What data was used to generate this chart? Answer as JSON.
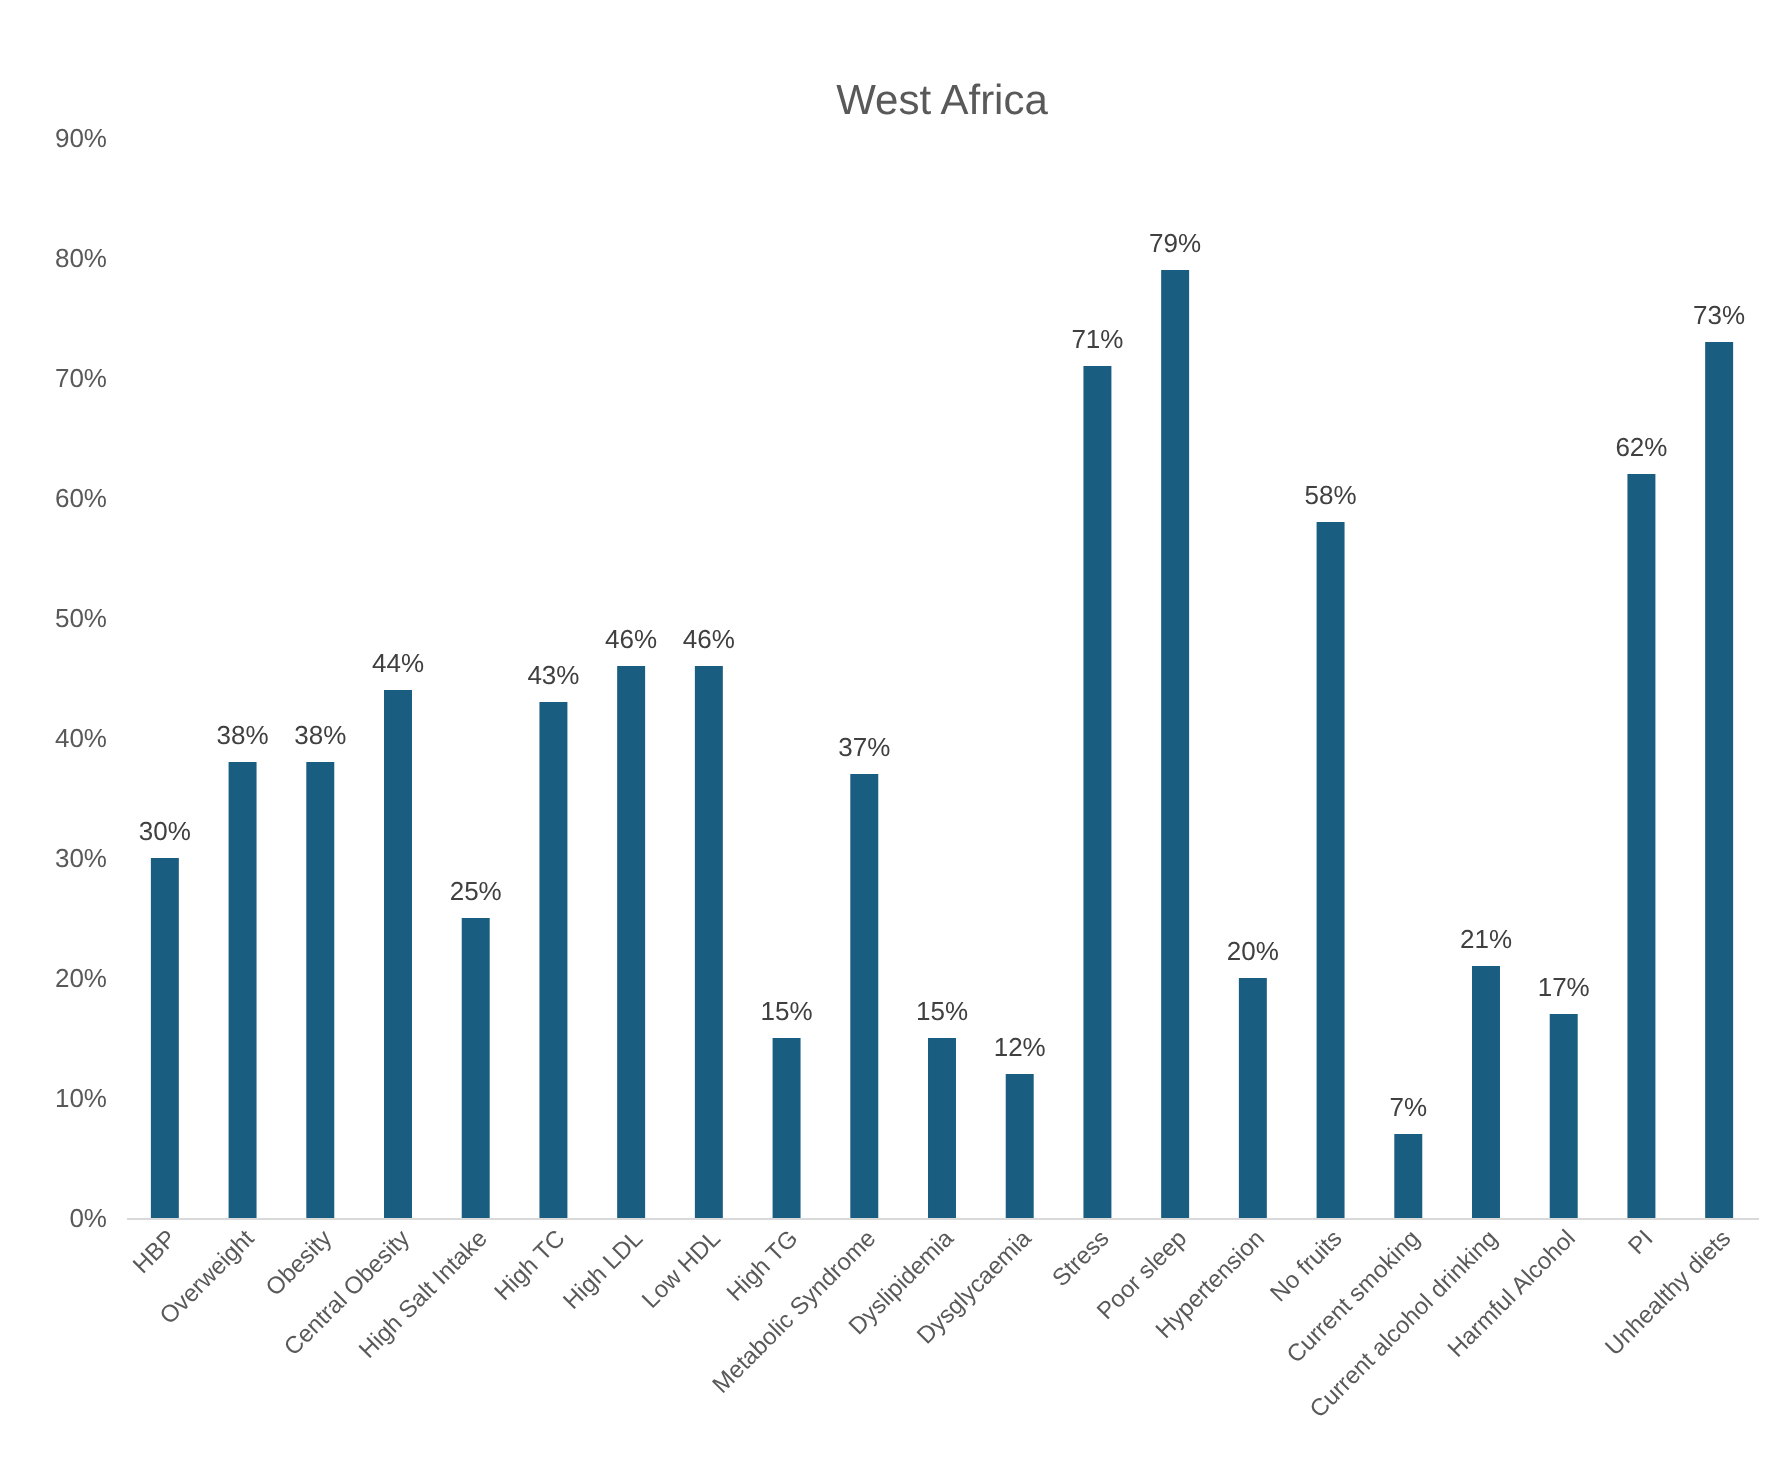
{
  "chart_data": {
    "type": "bar",
    "title": "West Africa",
    "categories": [
      "HBP",
      "Overweight",
      "Obesity",
      "Central Obesity",
      "High Salt Intake",
      "High TC",
      "High LDL",
      "Low HDL",
      "High TG",
      "Metabolic Syndrome",
      "Dyslipidemia",
      "Dysglycaemia",
      "Stress",
      "Poor sleep",
      "Hypertension",
      "No fruits",
      "Current smoking",
      "Current alcohol drinking",
      "Harmful Alcohol",
      "PI",
      "Unhealthy diets"
    ],
    "values": [
      30,
      38,
      38,
      44,
      25,
      43,
      46,
      46,
      15,
      37,
      15,
      12,
      71,
      79,
      20,
      58,
      7,
      21,
      17,
      62,
      73
    ],
    "value_labels": [
      "30%",
      "38%",
      "38%",
      "44%",
      "25%",
      "43%",
      "46%",
      "46%",
      "15%",
      "37%",
      "15%",
      "12%",
      "71%",
      "79%",
      "20%",
      "58%",
      "7%",
      "21%",
      "17%",
      "62%",
      "73%"
    ],
    "color": "#195e80",
    "ylim": [
      0,
      90
    ],
    "yticks": [
      {
        "value": 0,
        "label": "0%"
      },
      {
        "value": 10,
        "label": "10%"
      },
      {
        "value": 20,
        "label": "20%"
      },
      {
        "value": 30,
        "label": "30%"
      },
      {
        "value": 40,
        "label": "40%"
      },
      {
        "value": 50,
        "label": "50%"
      },
      {
        "value": 60,
        "label": "60%"
      },
      {
        "value": 70,
        "label": "70%"
      },
      {
        "value": 80,
        "label": "80%"
      },
      {
        "value": 90,
        "label": "90%"
      }
    ]
  }
}
